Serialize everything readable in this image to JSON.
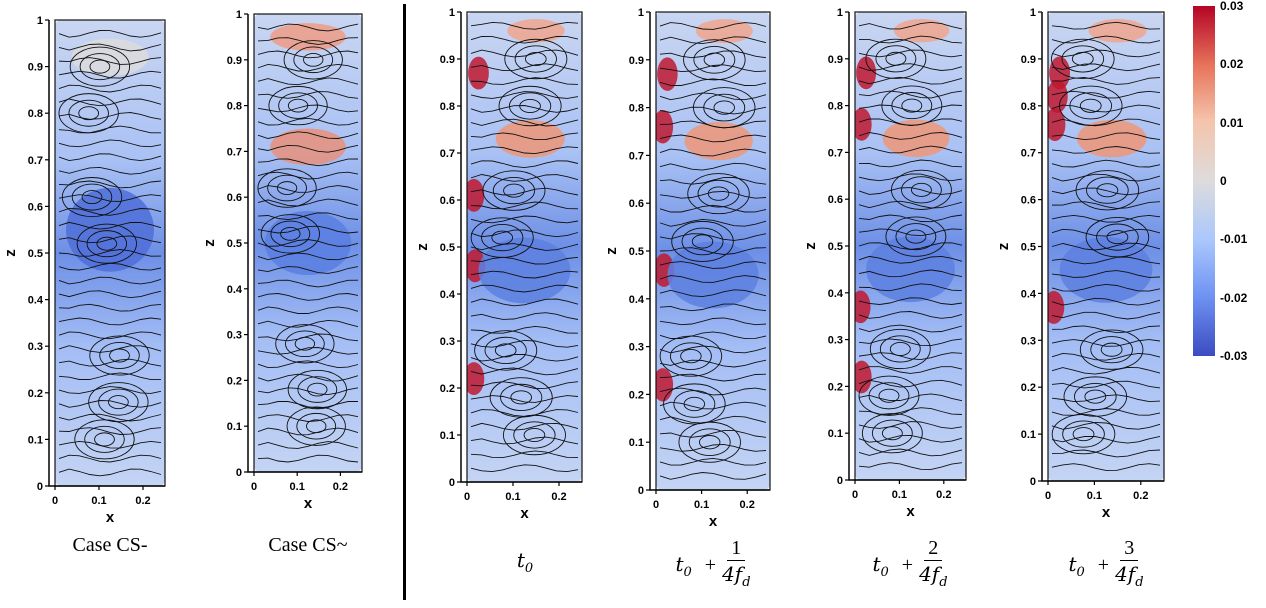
{
  "axes": {
    "xlabel": "x",
    "zlabel": "z",
    "x_ticks": [
      "0",
      "0.1",
      "0.2"
    ],
    "z_ticks": [
      "0",
      "0.1",
      "0.2",
      "0.3",
      "0.4",
      "0.5",
      "0.6",
      "0.7",
      "0.8",
      "0.9",
      "1"
    ]
  },
  "panels": [
    {
      "id": "case-cs-minus",
      "caption": "Case CS-"
    },
    {
      "id": "case-cs-tilde",
      "caption": "Case CS~"
    },
    {
      "id": "t0",
      "caption_base": "t",
      "caption_sub": "0"
    },
    {
      "id": "t1",
      "caption_base": "t",
      "caption_sub": "0",
      "op": "+",
      "numerator": "1",
      "denominator": "4f",
      "den_sub": "d"
    },
    {
      "id": "t2",
      "caption_base": "t",
      "caption_sub": "0",
      "op": "+",
      "numerator": "2",
      "denominator": "4f",
      "den_sub": "d"
    },
    {
      "id": "t3",
      "caption_base": "t",
      "caption_sub": "0",
      "op": "+",
      "numerator": "3",
      "denominator": "4f",
      "den_sub": "d"
    }
  ],
  "colorbar": {
    "ticks": [
      "0.03",
      "0.02",
      "0.01",
      "0",
      "-0.01",
      "-0.02",
      "-0.03"
    ],
    "colors": [
      "#b40426",
      "#e7745b",
      "#f5c4ac",
      "#dddcdc",
      "#aac7fd",
      "#6f92f3",
      "#3b4cc0"
    ]
  }
}
